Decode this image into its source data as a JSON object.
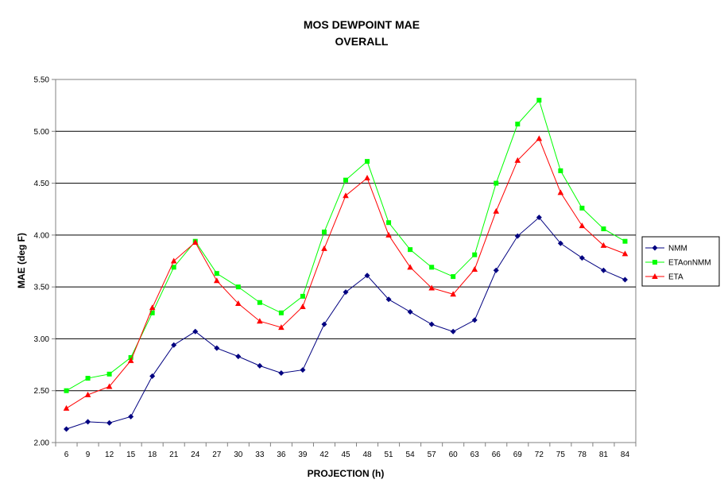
{
  "chart_data": {
    "type": "line",
    "title": "MOS DEWPOINT MAE",
    "subtitle": "OVERALL",
    "xlabel": "PROJECTION (h)",
    "ylabel": "MAE (deg F)",
    "ylim": [
      2.0,
      5.5
    ],
    "ytick_step": 0.5,
    "ytick_labels": [
      "2.00",
      "2.50",
      "3.00",
      "3.50",
      "4.00",
      "4.50",
      "5.00",
      "5.50"
    ],
    "grid": "horizontal",
    "legend_position": "right",
    "categories": [
      "6",
      "9",
      "12",
      "15",
      "18",
      "21",
      "24",
      "27",
      "30",
      "33",
      "36",
      "39",
      "42",
      "45",
      "48",
      "51",
      "54",
      "57",
      "60",
      "63",
      "66",
      "69",
      "72",
      "75",
      "78",
      "81",
      "84"
    ],
    "series": [
      {
        "name": "NMM",
        "color": "#000080",
        "marker": "diamond",
        "values": [
          2.13,
          2.2,
          2.19,
          2.25,
          2.64,
          2.94,
          3.07,
          2.91,
          2.83,
          2.74,
          2.67,
          2.7,
          3.14,
          3.45,
          3.61,
          3.38,
          3.26,
          3.14,
          3.07,
          3.18,
          3.66,
          3.99,
          4.17,
          3.92,
          3.78,
          3.66,
          3.57
        ]
      },
      {
        "name": "ETAonNMM",
        "color": "#00ff00",
        "marker": "square",
        "values": [
          2.5,
          2.62,
          2.66,
          2.82,
          3.25,
          3.69,
          3.94,
          3.63,
          3.5,
          3.35,
          3.25,
          3.41,
          4.03,
          4.53,
          4.71,
          4.12,
          3.86,
          3.69,
          3.6,
          3.81,
          4.5,
          5.07,
          5.3,
          4.62,
          4.26,
          4.06,
          3.94
        ]
      },
      {
        "name": "ETA",
        "color": "#ff0000",
        "marker": "triangle",
        "values": [
          2.33,
          2.46,
          2.54,
          2.79,
          3.3,
          3.75,
          3.93,
          3.56,
          3.34,
          3.17,
          3.11,
          3.31,
          3.87,
          4.38,
          4.55,
          4.0,
          3.69,
          3.49,
          3.43,
          3.67,
          4.23,
          4.72,
          4.93,
          4.41,
          4.09,
          3.9,
          3.82
        ]
      }
    ]
  }
}
